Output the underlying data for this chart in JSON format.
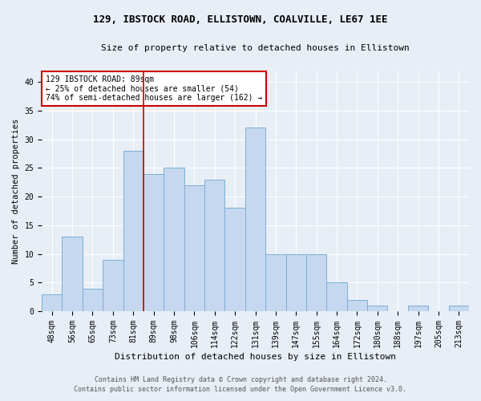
{
  "title1": "129, IBSTOCK ROAD, ELLISTOWN, COALVILLE, LE67 1EE",
  "title2": "Size of property relative to detached houses in Ellistown",
  "xlabel": "Distribution of detached houses by size in Ellistown",
  "ylabel": "Number of detached properties",
  "categories": [
    "48sqm",
    "56sqm",
    "65sqm",
    "73sqm",
    "81sqm",
    "89sqm",
    "98sqm",
    "106sqm",
    "114sqm",
    "122sqm",
    "131sqm",
    "139sqm",
    "147sqm",
    "155sqm",
    "164sqm",
    "172sqm",
    "180sqm",
    "188sqm",
    "197sqm",
    "205sqm",
    "213sqm"
  ],
  "values": [
    3,
    13,
    4,
    9,
    28,
    24,
    25,
    22,
    23,
    18,
    32,
    10,
    10,
    10,
    5,
    2,
    1,
    0,
    1,
    0,
    1
  ],
  "bar_color": "#c5d8f0",
  "bar_edge_color": "#7bafd4",
  "highlight_line_index": 5,
  "highlight_line_color": "#cc0000",
  "annotation_line1": "129 IBSTOCK ROAD: 89sqm",
  "annotation_line2": "← 25% of detached houses are smaller (54)",
  "annotation_line3": "74% of semi-detached houses are larger (162) →",
  "annotation_box_color": "#ffffff",
  "annotation_box_edge": "#cc0000",
  "ylim": [
    0,
    42
  ],
  "yticks": [
    0,
    5,
    10,
    15,
    20,
    25,
    30,
    35,
    40
  ],
  "footnote1": "Contains HM Land Registry data © Crown copyright and database right 2024.",
  "footnote2": "Contains public sector information licensed under the Open Government Licence v3.0.",
  "bg_color": "#e8eef6",
  "plot_bg_color": "#e8eef6",
  "title1_fontsize": 9,
  "title2_fontsize": 8,
  "xlabel_fontsize": 8,
  "ylabel_fontsize": 7.5,
  "tick_fontsize": 7,
  "footnote_fontsize": 6
}
